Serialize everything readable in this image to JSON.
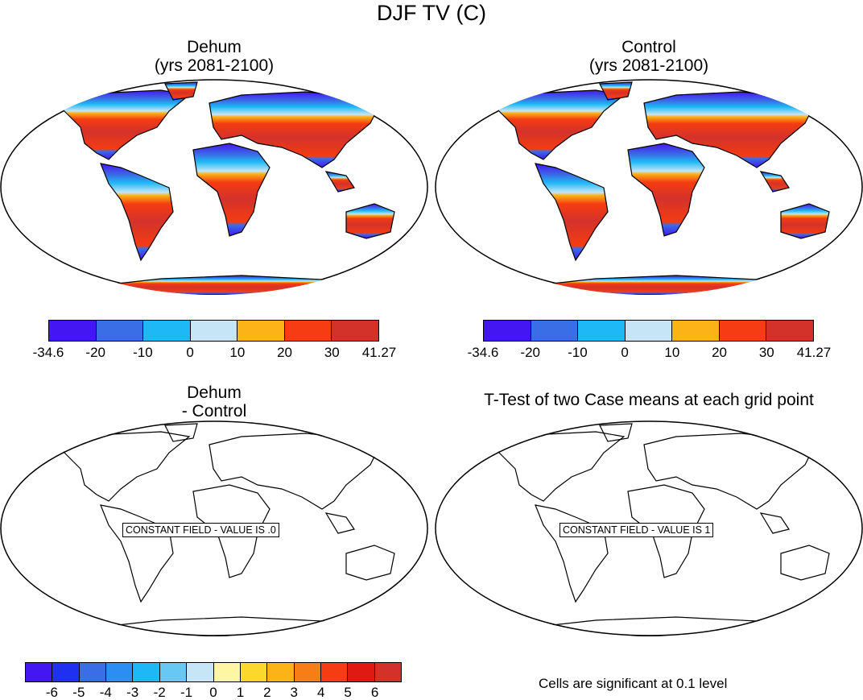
{
  "figure": {
    "title": "DJF TV (C)"
  },
  "panels": {
    "top_left": {
      "title_line1": "Dehum",
      "title_line2": "(yrs 2081-2100)"
    },
    "top_right": {
      "title_line1": "Control",
      "title_line2": "(yrs 2081-2100)"
    },
    "bottom_left": {
      "title_line1": "Dehum",
      "title_line2": "- Control",
      "message": "CONSTANT FIELD - VALUE IS .0"
    },
    "bottom_right": {
      "title_line1": "T-Test of two Case means at each grid point",
      "message": "CONSTANT FIELD - VALUE IS 1"
    }
  },
  "colorbars": {
    "absolute": {
      "colors": [
        "#4416f2",
        "#3a6ee6",
        "#1db8f5",
        "#c6e5f6",
        "#fbb317",
        "#f53c12",
        "#d3322b"
      ],
      "labels": [
        "-34.6",
        "-20",
        "-10",
        "0",
        "10",
        "20",
        "30",
        "41.27"
      ]
    },
    "difference": {
      "colors": [
        "#4416f2",
        "#2030f0",
        "#3a6ee6",
        "#2a8ef2",
        "#1db8f5",
        "#66c8f3",
        "#c6e5f6",
        "#fdf6a3",
        "#fcd72c",
        "#fbb317",
        "#f77d16",
        "#f53c12",
        "#e01a10",
        "#d3322b"
      ],
      "labels": [
        "-6",
        "-5",
        "-4",
        "-3",
        "-2",
        "-1",
        "0",
        "1",
        "2",
        "3",
        "4",
        "5",
        "6"
      ]
    }
  },
  "footer": {
    "significance_note": "Cells are significant at 0.1 level"
  }
}
